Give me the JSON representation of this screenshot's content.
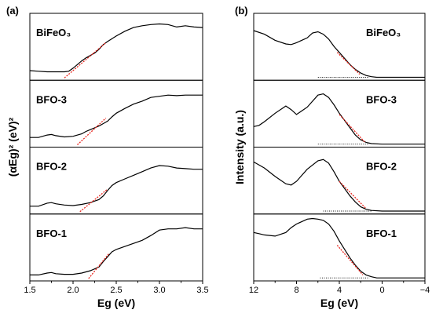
{
  "panel_labels": [
    "(a)",
    "(b)"
  ],
  "chart_data": [
    {
      "type": "line",
      "panel": "(a)",
      "xlabel": "Eg (eV)",
      "ylabel": "(αEg)² (eV)²",
      "xlim": [
        1.5,
        3.5
      ],
      "xticks": [
        "1.5",
        "2.0",
        "2.5",
        "3.0",
        "3.5"
      ],
      "ylim": [
        0,
        1
      ],
      "stacked_subpanels": 4,
      "series": [
        {
          "name": "BiFeO₃",
          "x": [
            1.5,
            1.6,
            1.7,
            1.8,
            1.9,
            1.95,
            2.0,
            2.05,
            2.1,
            2.15,
            2.2,
            2.25,
            2.3,
            2.35,
            2.4,
            2.5,
            2.6,
            2.7,
            2.8,
            2.9,
            3.0,
            3.1,
            3.2,
            3.3,
            3.4,
            3.5
          ],
          "y": [
            0.12,
            0.11,
            0.1,
            0.1,
            0.1,
            0.11,
            0.16,
            0.22,
            0.28,
            0.33,
            0.37,
            0.41,
            0.47,
            0.55,
            0.6,
            0.69,
            0.77,
            0.83,
            0.86,
            0.88,
            0.89,
            0.88,
            0.84,
            0.86,
            0.84,
            0.83
          ],
          "tangent": {
            "x": [
              1.9,
              2.38
            ],
            "y": [
              0.0,
              0.58
            ]
          }
        },
        {
          "name": "BFO-3",
          "x": [
            1.5,
            1.6,
            1.7,
            1.75,
            1.8,
            1.9,
            2.0,
            2.1,
            2.15,
            2.2,
            2.25,
            2.3,
            2.35,
            2.4,
            2.45,
            2.5,
            2.6,
            2.7,
            2.8,
            2.9,
            3.0,
            3.1,
            3.2,
            3.3,
            3.4,
            3.5
          ],
          "y": [
            0.12,
            0.12,
            0.16,
            0.17,
            0.15,
            0.13,
            0.14,
            0.18,
            0.22,
            0.25,
            0.28,
            0.31,
            0.35,
            0.39,
            0.46,
            0.52,
            0.6,
            0.67,
            0.72,
            0.78,
            0.8,
            0.82,
            0.81,
            0.82,
            0.82,
            0.82
          ],
          "tangent": {
            "x": [
              2.05,
              2.38
            ],
            "y": [
              0.0,
              0.44
            ]
          }
        },
        {
          "name": "BFO-2",
          "x": [
            1.5,
            1.6,
            1.7,
            1.75,
            1.8,
            1.9,
            2.0,
            2.1,
            2.2,
            2.3,
            2.35,
            2.4,
            2.45,
            2.5,
            2.6,
            2.7,
            2.8,
            2.9,
            3.0,
            3.1,
            3.2,
            3.3,
            3.4,
            3.5
          ],
          "y": [
            0.09,
            0.09,
            0.14,
            0.15,
            0.13,
            0.11,
            0.1,
            0.12,
            0.15,
            0.2,
            0.26,
            0.35,
            0.43,
            0.48,
            0.54,
            0.6,
            0.66,
            0.72,
            0.76,
            0.75,
            0.72,
            0.71,
            0.7,
            0.7
          ],
          "tangent": {
            "x": [
              2.08,
              2.39
            ],
            "y": [
              0.0,
              0.36
            ]
          }
        },
        {
          "name": "BFO-1",
          "x": [
            1.5,
            1.6,
            1.7,
            1.75,
            1.8,
            1.9,
            2.0,
            2.1,
            2.2,
            2.3,
            2.35,
            2.4,
            2.45,
            2.5,
            2.6,
            2.7,
            2.8,
            2.9,
            3.0,
            3.1,
            3.2,
            3.3,
            3.4,
            3.5
          ],
          "y": [
            0.06,
            0.06,
            0.09,
            0.1,
            0.08,
            0.07,
            0.07,
            0.09,
            0.13,
            0.19,
            0.28,
            0.36,
            0.44,
            0.48,
            0.53,
            0.58,
            0.63,
            0.71,
            0.8,
            0.82,
            0.82,
            0.84,
            0.82,
            0.82
          ],
          "tangent": {
            "x": [
              2.18,
              2.42
            ],
            "y": [
              0.0,
              0.42
            ]
          }
        }
      ]
    },
    {
      "type": "line",
      "panel": "(b)",
      "xlabel": "Eg (eV)",
      "ylabel": "Intensity (a.u.)",
      "xlim": [
        12,
        -4
      ],
      "xticks": [
        "12",
        "8",
        "4",
        "0",
        "−4"
      ],
      "ylim": [
        0,
        1
      ],
      "stacked_subpanels": 4,
      "series": [
        {
          "name": "BiFeO₃",
          "x": [
            12,
            11,
            10,
            9,
            8.5,
            8,
            7,
            6.5,
            6,
            5.5,
            5,
            4.5,
            4,
            3.5,
            3,
            2.5,
            2,
            1.5,
            1,
            0.5,
            0,
            -1,
            -2,
            -3,
            -4
          ],
          "y": [
            0.78,
            0.72,
            0.62,
            0.56,
            0.55,
            0.58,
            0.66,
            0.74,
            0.76,
            0.72,
            0.64,
            0.52,
            0.42,
            0.32,
            0.22,
            0.14,
            0.08,
            0.04,
            0.02,
            0.01,
            0.01,
            0.01,
            0.01,
            0.01,
            0.01
          ],
          "tangent": {
            "x": [
              4.2,
              2.1
            ],
            "y": [
              0.42,
              0.06
            ]
          },
          "baseline": {
            "x": [
              6,
              1.2
            ],
            "y": [
              0.01,
              0.01
            ]
          }
        },
        {
          "name": "BFO-3",
          "x": [
            12,
            11.5,
            11,
            10,
            9,
            8.5,
            8,
            7,
            6,
            5.5,
            5,
            4.5,
            4,
            3.5,
            3,
            2.5,
            2,
            1.5,
            1,
            0,
            -1,
            -2,
            -3,
            -4
          ],
          "y": [
            0.3,
            0.32,
            0.38,
            0.52,
            0.64,
            0.58,
            0.5,
            0.62,
            0.82,
            0.84,
            0.78,
            0.66,
            0.52,
            0.4,
            0.28,
            0.16,
            0.08,
            0.04,
            0.02,
            0.01,
            0.01,
            0.01,
            0.01,
            0.01
          ],
          "tangent": {
            "x": [
              4.0,
              1.6
            ],
            "y": [
              0.5,
              0.04
            ]
          },
          "baseline": {
            "x": [
              6,
              1.2
            ],
            "y": [
              0.01,
              0.01
            ]
          }
        },
        {
          "name": "BFO-2",
          "x": [
            12,
            11,
            10,
            9,
            8.5,
            8,
            7,
            6,
            5.5,
            5,
            4.5,
            4,
            3.5,
            3,
            2.5,
            2,
            1.5,
            1,
            0,
            -1,
            -2,
            -3,
            -4
          ],
          "y": [
            0.82,
            0.72,
            0.58,
            0.46,
            0.44,
            0.5,
            0.7,
            0.84,
            0.86,
            0.8,
            0.66,
            0.5,
            0.38,
            0.26,
            0.16,
            0.08,
            0.04,
            0.02,
            0.01,
            0.01,
            0.01,
            0.01,
            0.01
          ],
          "tangent": {
            "x": [
              4.0,
              1.5
            ],
            "y": [
              0.5,
              0.05
            ]
          },
          "baseline": {
            "x": [
              5.5,
              1.0
            ],
            "y": [
              0.01,
              0.01
            ]
          }
        },
        {
          "name": "BFO-1",
          "x": [
            12,
            11.5,
            11,
            10,
            9,
            8.5,
            8,
            7,
            6.5,
            6,
            5.5,
            5,
            4.5,
            4,
            3.5,
            3,
            2.5,
            2,
            1.5,
            1,
            0.5,
            0,
            -1,
            -2,
            -3,
            -4
          ],
          "y": [
            0.76,
            0.74,
            0.72,
            0.7,
            0.76,
            0.84,
            0.9,
            0.98,
            0.99,
            0.98,
            0.96,
            0.9,
            0.78,
            0.62,
            0.48,
            0.34,
            0.22,
            0.12,
            0.06,
            0.03,
            0.01,
            0.01,
            0.01,
            0.01,
            0.01,
            0.01
          ],
          "tangent": {
            "x": [
              4.2,
              1.8
            ],
            "y": [
              0.55,
              0.06
            ]
          },
          "baseline": {
            "x": [
              5.8,
              1.2
            ],
            "y": [
              0.01,
              0.01
            ]
          }
        }
      ]
    }
  ]
}
